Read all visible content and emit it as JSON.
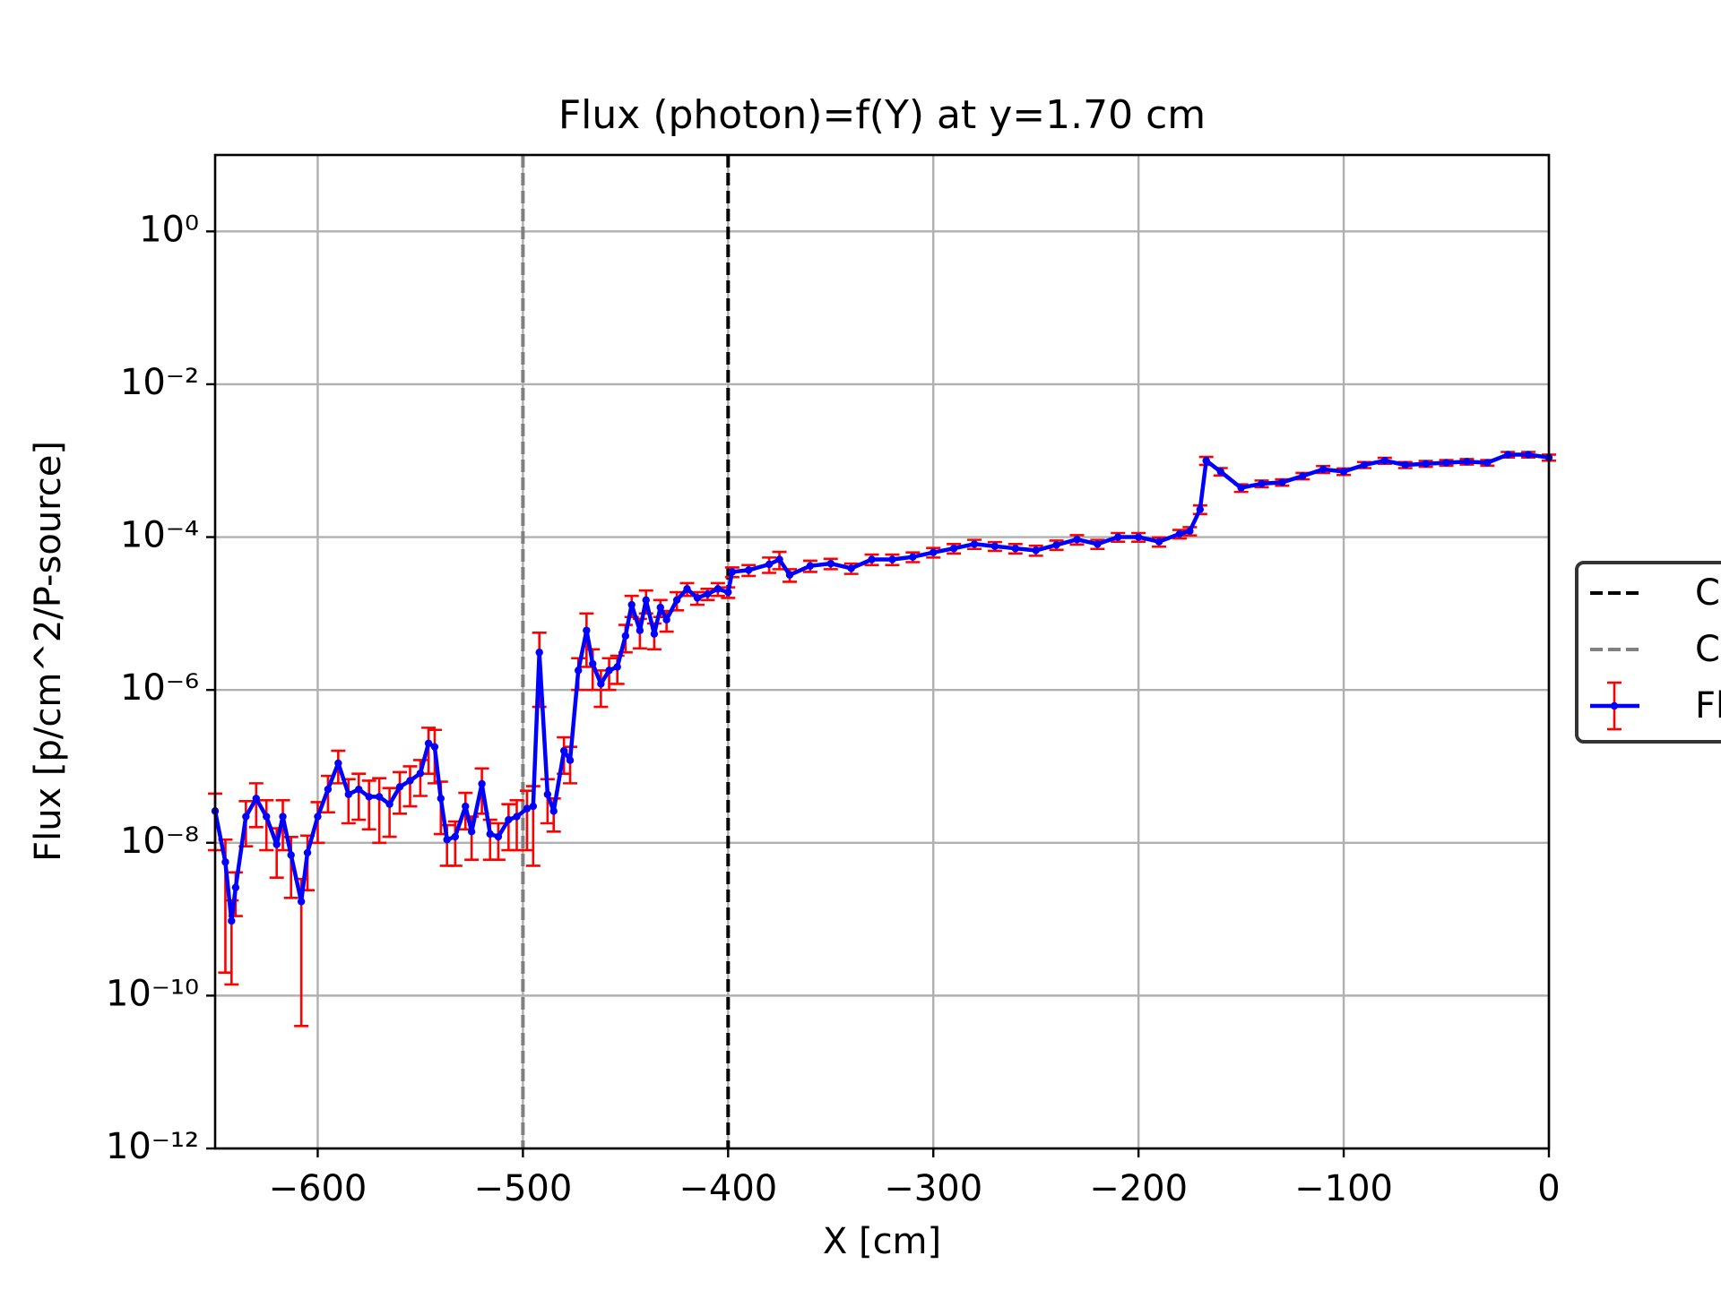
{
  "chart_data": {
    "type": "errorbar-line",
    "title": "Flux (photon)=f(Y) at y=1.70 cm",
    "xlabel": "X [cm]",
    "ylabel": "Flux [p/cm^2/P-source]",
    "xlim": [
      -650,
      0
    ],
    "xticks": [
      {
        "value": -600,
        "label": "−600"
      },
      {
        "value": -500,
        "label": "−500"
      },
      {
        "value": -400,
        "label": "−400"
      },
      {
        "value": -300,
        "label": "−300"
      },
      {
        "value": -200,
        "label": "−200"
      },
      {
        "value": -100,
        "label": "−100"
      },
      0
    ],
    "yscale": "log",
    "ylim": [
      1e-12,
      10
    ],
    "yticks": [
      {
        "value": 1,
        "label": "10⁰"
      },
      {
        "value": 0.01,
        "label": "10⁻²"
      },
      {
        "value": 0.0001,
        "label": "10⁻⁴"
      },
      {
        "value": 1e-06,
        "label": "10⁻⁶"
      },
      {
        "value": 1e-08,
        "label": "10⁻⁸"
      },
      {
        "value": 1e-10,
        "label": "10⁻¹⁰"
      },
      {
        "value": 1e-12,
        "label": "10⁻¹²"
      }
    ],
    "grid": true,
    "legend": "right",
    "vlines": [
      {
        "name": "C",
        "color": "#000000",
        "x": -400
      },
      {
        "name": "C",
        "color": "#808080",
        "x": -500
      }
    ],
    "series": [
      {
        "name": "Fl",
        "color": "#0000ff",
        "error_color": "#ff0000",
        "x": [
          -650,
          -645,
          -642,
          -640,
          -635,
          -630,
          -625,
          -620,
          -617,
          -613,
          -608,
          -605,
          -600,
          -595,
          -590,
          -585,
          -580,
          -575,
          -570,
          -565,
          -560,
          -555,
          -550,
          -546,
          -543,
          -540,
          -537,
          -533,
          -528,
          -525,
          -520,
          -516,
          -512,
          -507,
          -503,
          -498,
          -495,
          -492,
          -488,
          -485,
          -480,
          -477,
          -473,
          -469,
          -466,
          -462,
          -458,
          -454,
          -450,
          -447,
          -443,
          -440,
          -436,
          -433,
          -430,
          -425,
          -420,
          -415,
          -410,
          -405,
          -400,
          -398,
          -390,
          -380,
          -375,
          -370,
          -360,
          -350,
          -340,
          -330,
          -320,
          -310,
          -300,
          -290,
          -280,
          -270,
          -260,
          -250,
          -240,
          -230,
          -220,
          -210,
          -200,
          -190,
          -180,
          -175,
          -170,
          -167,
          -160,
          -150,
          -140,
          -130,
          -120,
          -110,
          -100,
          -90,
          -80,
          -70,
          -60,
          -50,
          -40,
          -30,
          -20,
          -10,
          0
        ],
        "values": [
          2.6e-08,
          5.6e-09,
          9.5e-10,
          2.6e-09,
          2.2e-08,
          3.8e-08,
          2.2e-08,
          9.5e-09,
          2.2e-08,
          6.9e-09,
          1.7e-09,
          7.4e-09,
          2.2e-08,
          5e-08,
          1.1e-07,
          4.3e-08,
          5e-08,
          4e-08,
          4e-08,
          3.2e-08,
          5.4e-08,
          6.5e-08,
          8.1e-08,
          2e-07,
          1.8e-07,
          3.8e-08,
          1.1e-08,
          1.2e-08,
          3e-08,
          1.4e-08,
          5.9e-08,
          1.3e-08,
          1.2e-08,
          2e-08,
          2.2e-08,
          2.8e-08,
          3e-08,
          3.1e-06,
          4.3e-08,
          2.6e-08,
          1.6e-07,
          1.2e-07,
          1.8e-06,
          6e-06,
          2.2e-06,
          1.2e-06,
          1.8e-06,
          2e-06,
          5.1e-06,
          1.3e-05,
          6e-06,
          1.5e-05,
          5.4e-06,
          1.2e-05,
          8.3e-06,
          1.5e-05,
          2.1e-05,
          1.6e-05,
          1.8e-05,
          2.1e-05,
          1.9e-05,
          3.5e-05,
          3.7e-05,
          4.4e-05,
          5.1e-05,
          3.2e-05,
          4.2e-05,
          4.5e-05,
          3.9e-05,
          5.1e-05,
          5.1e-05,
          5.5e-05,
          6.3e-05,
          7.1e-05,
          8.1e-05,
          7.6e-05,
          7.1e-05,
          6.7e-05,
          7.9e-05,
          9.3e-05,
          8.1e-05,
          0.0001,
          0.0001,
          8.7e-05,
          0.00011,
          0.00012,
          0.00023,
          0.001,
          0.00072,
          0.00044,
          0.0005,
          0.00052,
          0.00063,
          0.00077,
          0.00072,
          0.00088,
          0.001,
          0.00088,
          0.00091,
          0.00094,
          0.00097,
          0.00094,
          0.0012,
          0.0012,
          0.0011
        ],
        "errors": [
          1.8e-08,
          5.4e-09,
          8.1e-10,
          1.5e-09,
          1.3e-08,
          2.2e-08,
          1.4e-08,
          6e-09,
          1.4e-08,
          5e-09,
          1.66e-09,
          5e-09,
          1.2e-08,
          2.5e-08,
          5e-08,
          2.5e-08,
          3e-08,
          2.5e-08,
          3e-08,
          2e-08,
          3e-08,
          3.5e-08,
          4e-08,
          1.2e-07,
          1.2e-07,
          2.5e-08,
          6e-09,
          7e-09,
          1.5e-08,
          8e-09,
          3.5e-08,
          7e-09,
          6e-09,
          1.2e-08,
          1.4e-08,
          2e-08,
          2.5e-08,
          2.5e-06,
          2.5e-08,
          1.2e-08,
          8e-08,
          6e-08,
          8e-07,
          4e-06,
          1.2e-06,
          6e-07,
          8e-07,
          8e-07,
          2e-06,
          4e-06,
          2.5e-06,
          5e-06,
          2e-06,
          3e-06,
          2.5e-06,
          4e-06,
          4e-06,
          3e-06,
          3e-06,
          4e-06,
          3e-06,
          5e-06,
          6e-06,
          1e-05,
          1.3e-05,
          6e-06,
          7e-06,
          7e-06,
          6e-06,
          8e-06,
          8e-06,
          8e-06,
          9e-06,
          1e-05,
          1.1e-05,
          1e-05,
          1e-05,
          1e-05,
          1.1e-05,
          1.3e-05,
          1.1e-05,
          1.3e-05,
          1.3e-05,
          1.2e-05,
          1.4e-05,
          1.5e-05,
          3e-05,
          0.00012,
          8e-05,
          5e-05,
          5e-05,
          5e-05,
          6e-05,
          8e-05,
          7e-05,
          8e-05,
          9e-05,
          8e-05,
          8e-05,
          8e-05,
          8e-05,
          8e-05,
          0.0001,
          0.0001,
          0.0001
        ]
      }
    ]
  }
}
